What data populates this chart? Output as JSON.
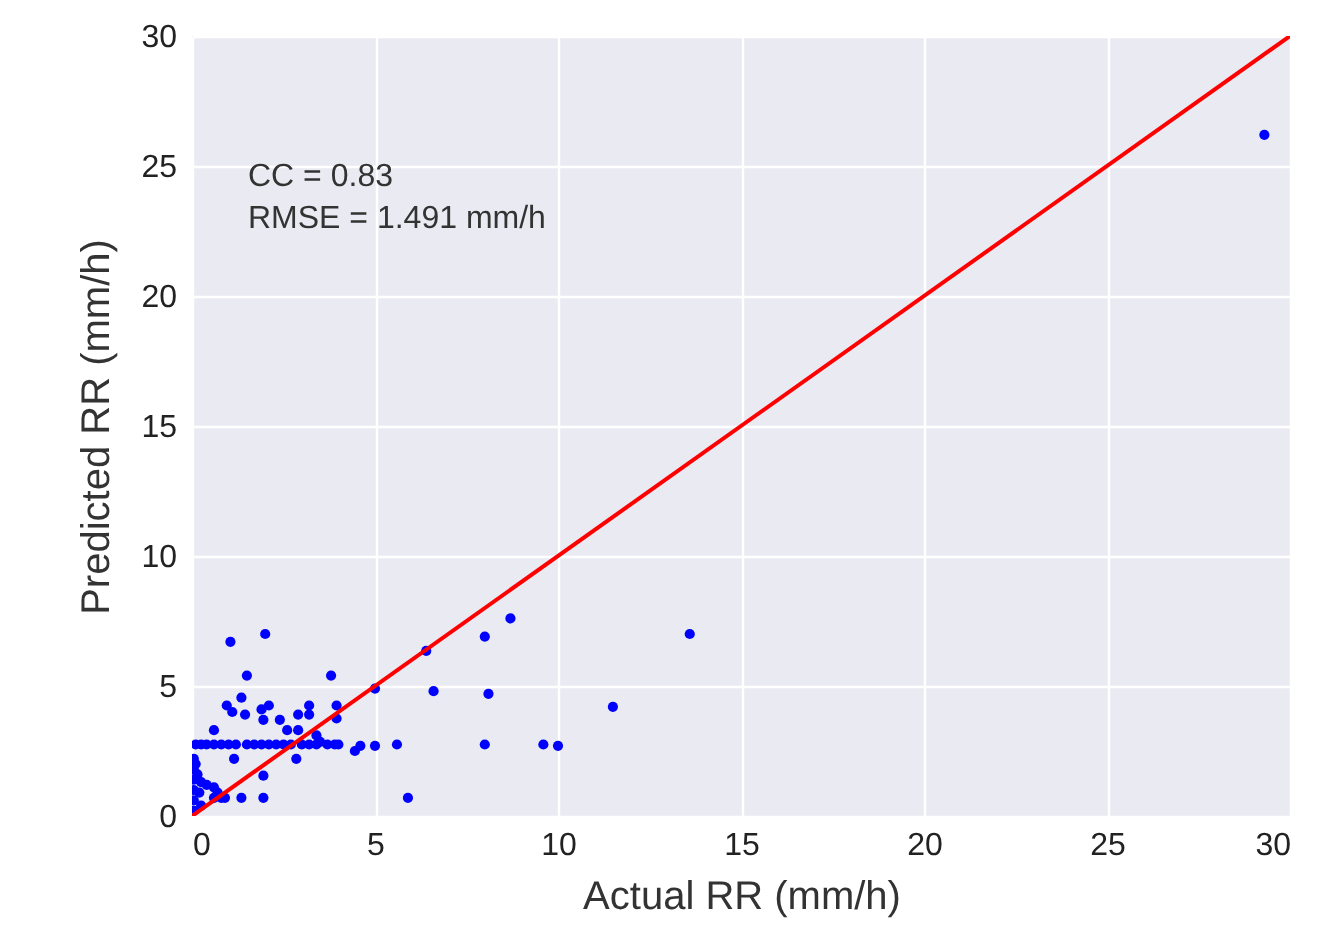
{
  "chart_data": {
    "type": "scatter",
    "xlabel": "Actual RR (mm/h)",
    "ylabel": "Predicted RR (mm/h)",
    "annotations": [
      "CC = 0.83",
      "RMSE = 1.491 mm/h"
    ],
    "xlim": [
      0,
      30
    ],
    "ylim": [
      0,
      30
    ],
    "xticks": [
      0,
      5,
      10,
      15,
      20,
      25,
      30
    ],
    "yticks": [
      0,
      5,
      10,
      15,
      20,
      25,
      30
    ],
    "grid": true,
    "series": [
      {
        "marker": "circle",
        "color": "#0000ff",
        "x": [
          29.3,
          13.6,
          8.7,
          8.0,
          6.4,
          6.6,
          8.1,
          11.5,
          8.0,
          9.6,
          10.0,
          5.9,
          5.0,
          5.6,
          5.0,
          4.6,
          4.45,
          1.05,
          2.0,
          1.5,
          3.8,
          3.95,
          3.95,
          3.2,
          3.2,
          2.9,
          2.1,
          1.9,
          1.95,
          2.4,
          1.35,
          0.95,
          1.1,
          1.45,
          0.6,
          2.6,
          2.9,
          3.4,
          3.5,
          2.85,
          1.15,
          1.95,
          1.95,
          1.35,
          0.1,
          0.25,
          0.4,
          0.6,
          0.8,
          1.0,
          1.2,
          1.5,
          1.7,
          1.9,
          2.1,
          2.3,
          2.5,
          2.7,
          3.0,
          3.2,
          3.4,
          3.7,
          3.9,
          4.0,
          0.05,
          0.05,
          0.05,
          0.05,
          0.05,
          0.1,
          0.15,
          0.2,
          0.25,
          0.4,
          0.6,
          0.6,
          0.7,
          0.8,
          0.9,
          0.05,
          0.25
        ],
        "values": [
          26.2,
          7.0,
          7.6,
          6.9,
          6.35,
          4.8,
          4.7,
          4.2,
          2.75,
          2.75,
          2.7,
          0.7,
          4.9,
          2.75,
          2.7,
          2.7,
          2.5,
          6.7,
          7.0,
          5.4,
          5.4,
          4.25,
          3.75,
          4.25,
          3.9,
          3.9,
          4.25,
          4.1,
          3.7,
          3.7,
          4.55,
          4.25,
          4.0,
          3.9,
          3.3,
          3.3,
          3.3,
          3.1,
          2.85,
          2.2,
          2.2,
          1.55,
          0.7,
          0.7,
          2.75,
          2.75,
          2.75,
          2.75,
          2.75,
          2.75,
          2.75,
          2.75,
          2.75,
          2.75,
          2.75,
          2.75,
          2.75,
          2.75,
          2.75,
          2.75,
          2.75,
          2.75,
          2.75,
          2.75,
          2.2,
          1.8,
          1.4,
          1.0,
          0.6,
          2.0,
          1.6,
          0.9,
          1.3,
          1.2,
          1.1,
          0.7,
          0.9,
          0.7,
          0.7,
          0.2,
          0.4
        ]
      },
      {
        "type": "line",
        "color": "#ff0000",
        "x": [
          0,
          30
        ],
        "values": [
          0,
          30
        ]
      }
    ]
  }
}
